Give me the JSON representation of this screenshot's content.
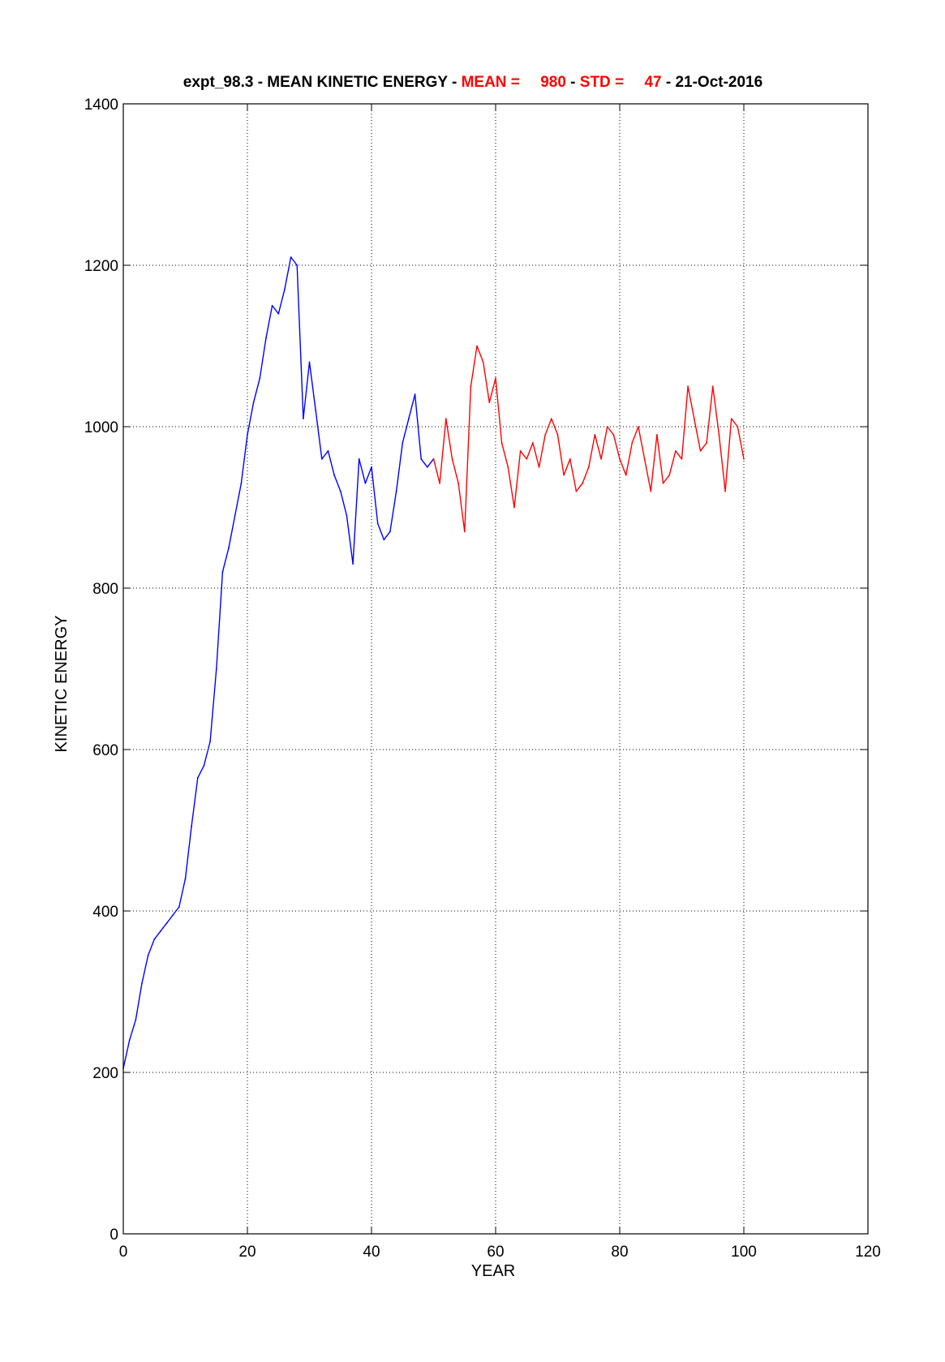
{
  "chart_data": {
    "type": "line",
    "title": {
      "prefix": "expt_98.3 - MEAN KINETIC ENERGY - ",
      "mean_label": "MEAN =",
      "mean_value": "980",
      "sep1": " - ",
      "std_label": "STD =",
      "std_value": "47",
      "suffix": " - 21-Oct-2016"
    },
    "xlabel": "YEAR",
    "ylabel": "KINETIC ENERGY",
    "xlim": [
      0,
      120
    ],
    "ylim": [
      0,
      1400
    ],
    "xticks": [
      0,
      20,
      40,
      60,
      80,
      100,
      120
    ],
    "yticks": [
      0,
      200,
      400,
      600,
      800,
      1000,
      1200,
      1400
    ],
    "grid": true,
    "colors": {
      "title": "#000000",
      "highlight": "#ff0000",
      "series_1": "#0000ff",
      "series_2": "#ff0000"
    },
    "series": [
      {
        "color": "#0000ff",
        "x": [
          0,
          1,
          2,
          3,
          4,
          5,
          6,
          7,
          8,
          9,
          10,
          11,
          12,
          13,
          14,
          15,
          16,
          17,
          18,
          19,
          20,
          21,
          22,
          23,
          24,
          25,
          26,
          27,
          28,
          29,
          30,
          31,
          32,
          33,
          34,
          35,
          36,
          37,
          38,
          39,
          40,
          41,
          42,
          43,
          44,
          45,
          46,
          47,
          48,
          49,
          50
        ],
        "y": [
          205,
          240,
          265,
          310,
          345,
          365,
          375,
          385,
          395,
          405,
          440,
          505,
          565,
          580,
          610,
          700,
          820,
          850,
          890,
          930,
          990,
          1030,
          1060,
          1110,
          1150,
          1140,
          1170,
          1210,
          1200,
          1010,
          1080,
          1020,
          960,
          970,
          940,
          920,
          890,
          830,
          960,
          930,
          950,
          880,
          860,
          870,
          920,
          980,
          1010,
          1040,
          960,
          950,
          960
        ]
      },
      {
        "color": "#ff0000",
        "x": [
          50,
          51,
          52,
          53,
          54,
          55,
          56,
          57,
          58,
          59,
          60,
          61,
          62,
          63,
          64,
          65,
          66,
          67,
          68,
          69,
          70,
          71,
          72,
          73,
          74,
          75,
          76,
          77,
          78,
          79,
          80,
          81,
          82,
          83,
          84,
          85,
          86,
          87,
          88,
          89,
          90,
          91,
          92,
          93,
          94,
          95,
          96,
          97,
          98,
          99,
          100
        ],
        "y": [
          960,
          930,
          1010,
          960,
          930,
          870,
          1050,
          1100,
          1080,
          1030,
          1060,
          980,
          950,
          900,
          970,
          960,
          980,
          950,
          990,
          1010,
          990,
          940,
          960,
          920,
          930,
          950,
          990,
          960,
          1000,
          990,
          960,
          940,
          980,
          1000,
          960,
          920,
          990,
          930,
          940,
          970,
          960,
          1050,
          1010,
          970,
          980,
          1050,
          990,
          920,
          1010,
          1000,
          960
        ]
      }
    ]
  }
}
